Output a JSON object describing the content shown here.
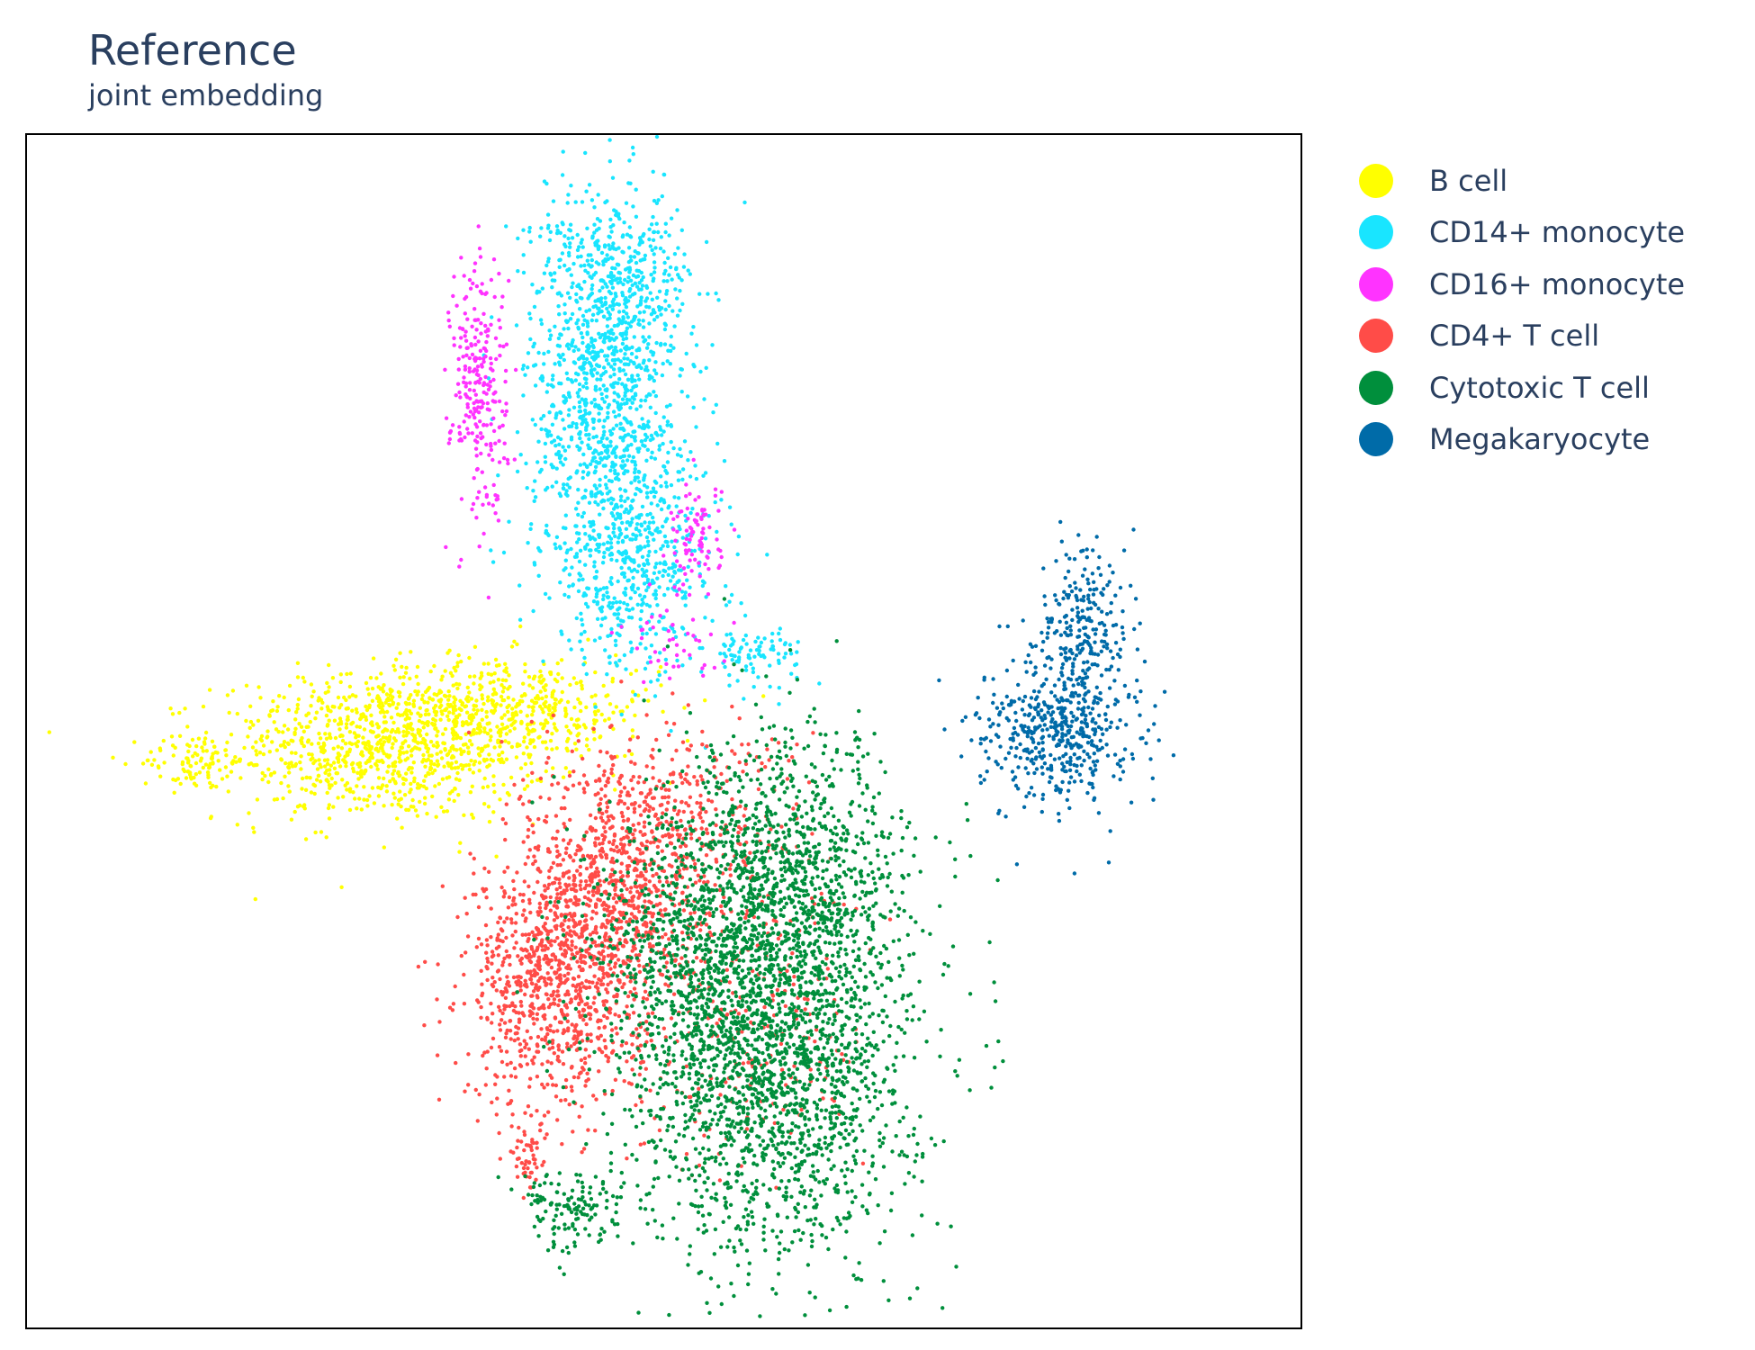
{
  "chart_data": {
    "type": "scatter",
    "title": "Reference",
    "subtitle": "joint embedding",
    "grid": false,
    "legend_position": "right",
    "xlim": [
      0,
      100
    ],
    "ylim": [
      0,
      100
    ],
    "series": [
      {
        "name": "B cell",
        "color": "#ffff00",
        "clusters": [
          {
            "cx": 28,
            "cy": 48.5,
            "sx": 6.5,
            "sy": 3.0,
            "n": 900
          },
          {
            "cx": 13,
            "cy": 47.5,
            "sx": 2.0,
            "sy": 1.2,
            "n": 80
          },
          {
            "cx": 37,
            "cy": 52,
            "sx": 6.5,
            "sy": 2.2,
            "n": 500
          }
        ]
      },
      {
        "name": "CD14+ monocyte",
        "color": "#19e5ff",
        "clusters": [
          {
            "cx": 45.5,
            "cy": 78,
            "sx": 3.0,
            "sy": 7.5,
            "n": 1000
          },
          {
            "cx": 47.5,
            "cy": 64,
            "sx": 3.5,
            "sy": 4.5,
            "n": 500
          },
          {
            "cx": 46.5,
            "cy": 88,
            "sx": 3.0,
            "sy": 3.5,
            "n": 300
          },
          {
            "cx": 57,
            "cy": 56.5,
            "sx": 2.0,
            "sy": 1.2,
            "n": 90
          },
          {
            "cx": 41.5,
            "cy": 92,
            "sx": 0.8,
            "sy": 0.6,
            "n": 15
          }
        ]
      },
      {
        "name": "CD16+ monocyte",
        "color": "#ff33ff",
        "clusters": [
          {
            "cx": 35.5,
            "cy": 79,
            "sx": 1.1,
            "sy": 5.5,
            "n": 260
          },
          {
            "cx": 52.5,
            "cy": 66,
            "sx": 1.0,
            "sy": 2.5,
            "n": 90
          },
          {
            "cx": 51,
            "cy": 57,
            "sx": 2.5,
            "sy": 1.5,
            "n": 40
          }
        ]
      },
      {
        "name": "CD4+ T cell",
        "color": "#ff4c48",
        "clusters": [
          {
            "cx": 41.5,
            "cy": 29,
            "sx": 3.5,
            "sy": 5.0,
            "n": 900
          },
          {
            "cx": 46,
            "cy": 38,
            "sx": 3.5,
            "sy": 5.5,
            "n": 700
          },
          {
            "cx": 52,
            "cy": 42,
            "sx": 4.5,
            "sy": 4.5,
            "n": 300
          },
          {
            "cx": 39.5,
            "cy": 14.5,
            "sx": 0.8,
            "sy": 2.0,
            "n": 60
          },
          {
            "cx": 56,
            "cy": 25,
            "sx": 5.0,
            "sy": 6.0,
            "n": 250
          }
        ]
      },
      {
        "name": "Cytotoxic T cell",
        "color": "#008f3c",
        "clusters": [
          {
            "cx": 58.5,
            "cy": 23,
            "sx": 5.5,
            "sy": 8.5,
            "n": 2200
          },
          {
            "cx": 60,
            "cy": 38,
            "sx": 4.5,
            "sy": 6.0,
            "n": 900
          },
          {
            "cx": 51,
            "cy": 32,
            "sx": 4.0,
            "sy": 6.0,
            "n": 400
          },
          {
            "cx": 43,
            "cy": 10,
            "sx": 2.0,
            "sy": 1.8,
            "n": 140
          }
        ]
      },
      {
        "name": "Megakaryocyte",
        "color": "#006ba8",
        "clusters": [
          {
            "cx": 81,
            "cy": 50,
            "sx": 3.0,
            "sy": 3.0,
            "n": 450
          },
          {
            "cx": 83,
            "cy": 58,
            "sx": 1.8,
            "sy": 4.0,
            "n": 250
          }
        ]
      }
    ]
  }
}
